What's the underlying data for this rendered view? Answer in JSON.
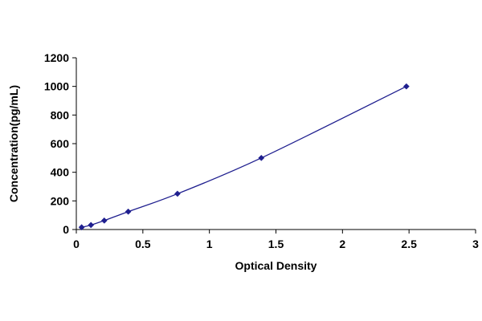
{
  "colors": {
    "background": "#ffffff",
    "axis": "#000000",
    "series": "#1f1f8f"
  },
  "chart_data": {
    "type": "scatter",
    "title": "",
    "xlabel": "Optical Density",
    "ylabel": "Concentration(pg/mL)",
    "xlim": [
      0,
      3
    ],
    "ylim": [
      0,
      1200
    ],
    "xticks": [
      0,
      0.5,
      1,
      1.5,
      2,
      2.5,
      3
    ],
    "xtick_labels": [
      "0",
      "0.5",
      "1",
      "1.5",
      "2",
      "2.5",
      "3"
    ],
    "yticks": [
      0,
      200,
      400,
      600,
      800,
      1000,
      1200
    ],
    "ytick_labels": [
      "0",
      "200",
      "400",
      "600",
      "800",
      "1000",
      "1200"
    ],
    "grid": false,
    "legend": false,
    "marker": "diamond",
    "connected_with_smooth_line": true,
    "series": [
      {
        "x": [
          0.04,
          0.11,
          0.21,
          0.39,
          0.76,
          1.39,
          2.48
        ],
        "y": [
          15.6,
          31.2,
          62.5,
          125,
          250,
          500,
          1000
        ]
      }
    ]
  }
}
